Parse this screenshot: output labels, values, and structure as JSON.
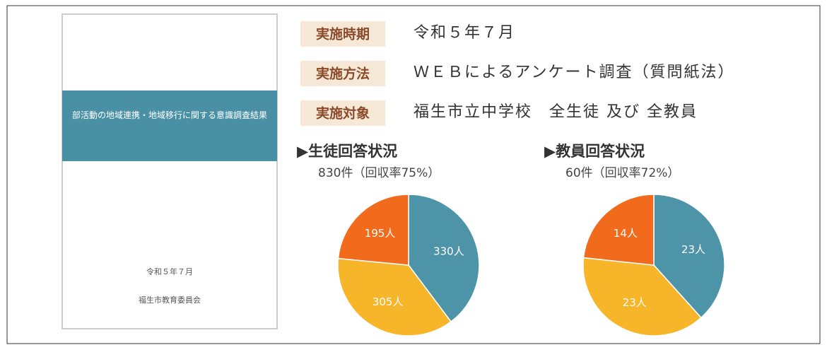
{
  "cover": {
    "title": "部活動の地域連携・地域移行に関する意識調査結果",
    "date": "令和５年７月",
    "publisher": "福生市教育委員会"
  },
  "info": [
    {
      "label": "実施時期",
      "value": "令和５年７月"
    },
    {
      "label": "実施方法",
      "value": "ＷＥＢによるアンケート調査（質問紙法）"
    },
    {
      "label": "実施対象",
      "value": "福生市立中学校　全生徒 及び 全教員"
    }
  ],
  "chart_data": [
    {
      "type": "pie",
      "title": "▶生徒回答状況",
      "subtitle": "830件（回収率75%）",
      "values": [
        330,
        305,
        195
      ],
      "value_labels": [
        "330人",
        "305人",
        "195人"
      ],
      "colors": [
        "#4e94a8",
        "#f7b52a",
        "#f26a1b"
      ]
    },
    {
      "type": "pie",
      "title": "▶教員回答状況",
      "subtitle": "60件（回収率72%）",
      "values": [
        23,
        23,
        14
      ],
      "value_labels": [
        "23人",
        "23人",
        "14人"
      ],
      "colors": [
        "#4e94a8",
        "#f7b52a",
        "#f26a1b"
      ]
    }
  ]
}
